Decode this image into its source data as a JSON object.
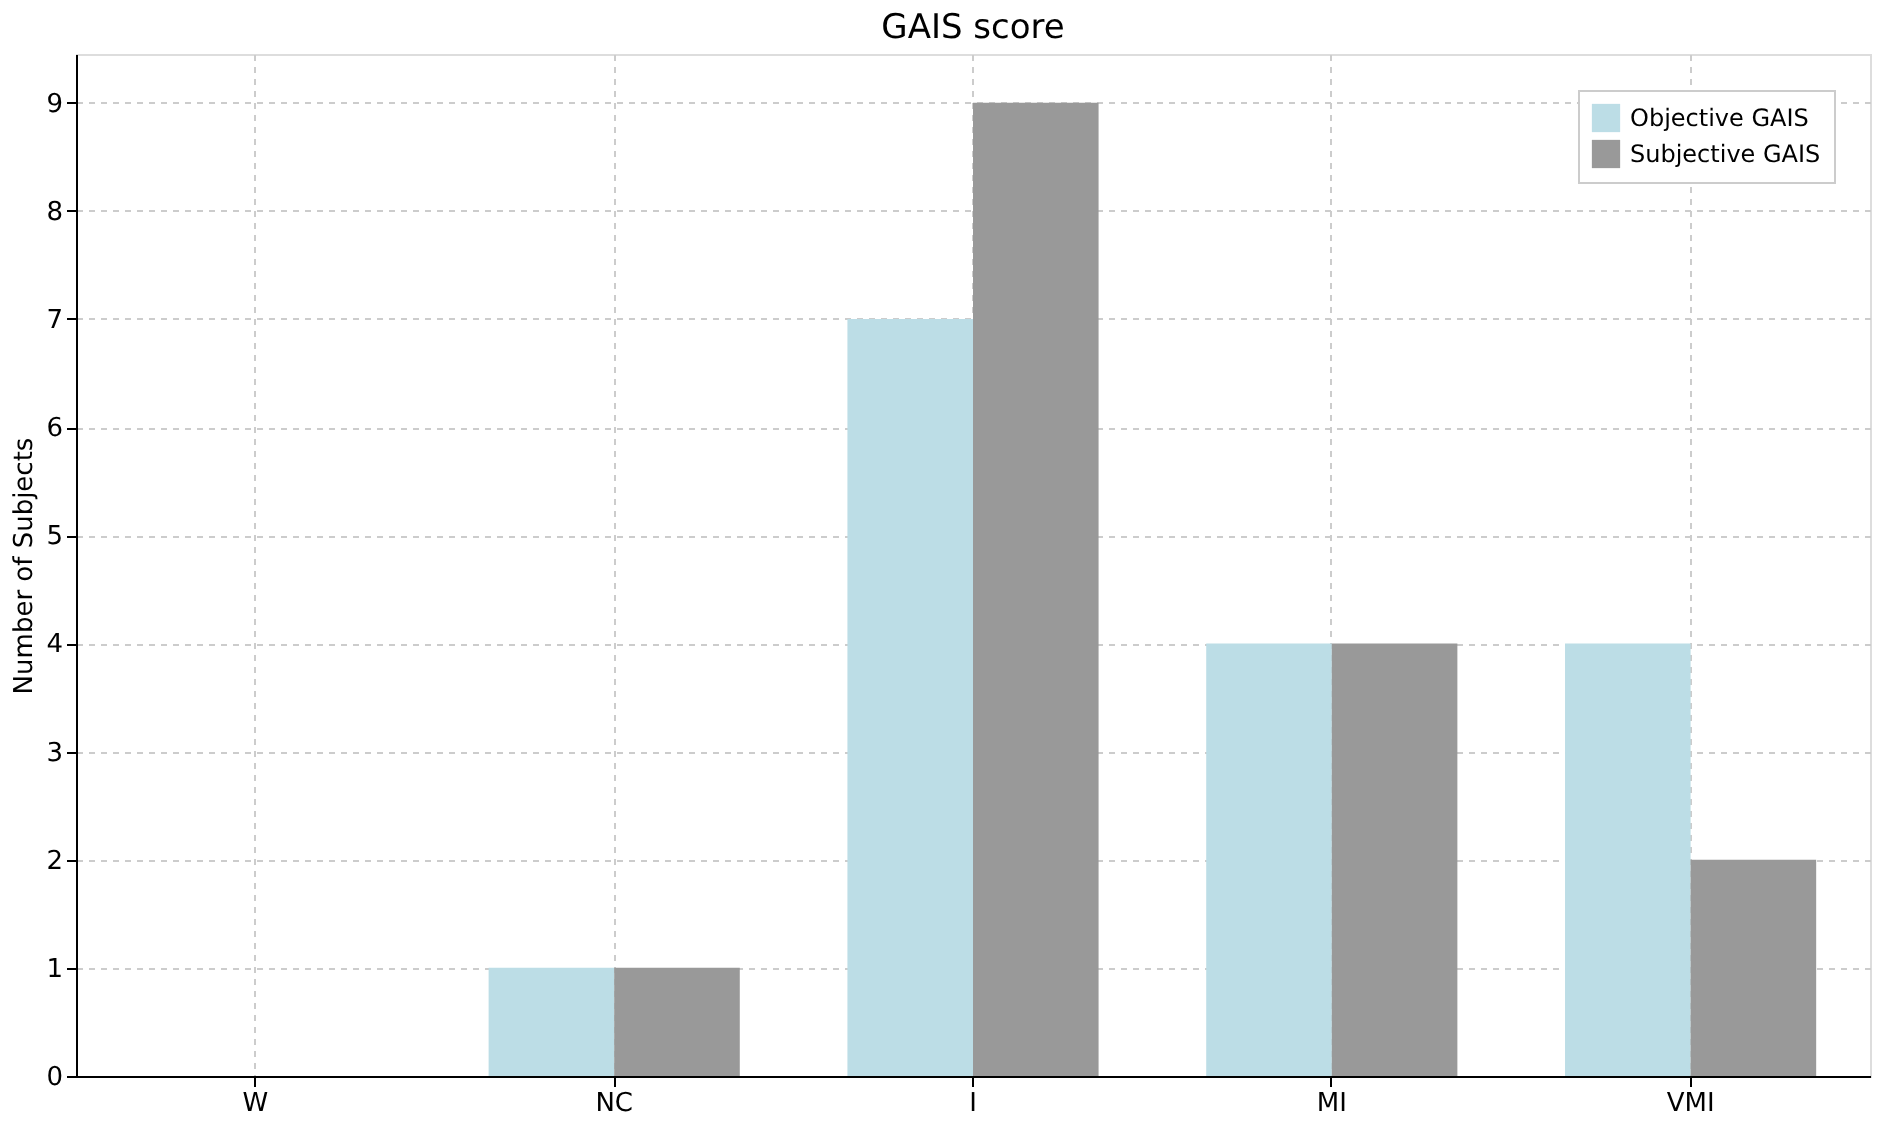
{
  "chart_data": {
    "type": "bar",
    "title": "GAIS score",
    "ylabel": "Number of Subjects",
    "categories": [
      "W",
      "NC",
      "I",
      "MI",
      "VMI"
    ],
    "series": [
      {
        "name": "Objective GAIS",
        "color": "#bcdde6",
        "values": [
          0,
          1,
          7,
          4,
          4
        ]
      },
      {
        "name": "Subjective GAIS",
        "color": "#999999",
        "values": [
          0,
          1,
          9,
          4,
          2
        ]
      }
    ],
    "ylim": [
      0,
      9.45
    ],
    "yticks": [
      0,
      1,
      2,
      3,
      4,
      5,
      6,
      7,
      8,
      9
    ],
    "grid": true,
    "legend": "top right"
  }
}
